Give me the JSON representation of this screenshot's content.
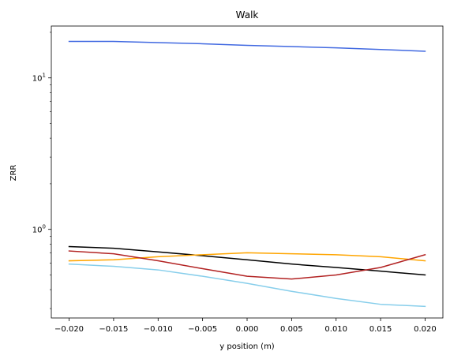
{
  "chart_data": {
    "type": "line",
    "title": "Walk",
    "xlabel": "y position (m)",
    "ylabel": "ZRR",
    "yscale": "log",
    "xlim": [
      -0.022,
      0.022
    ],
    "ylim": [
      0.26,
      22
    ],
    "grid": false,
    "legend": "none",
    "x_ticks": [
      -0.02,
      -0.015,
      -0.01,
      -0.005,
      0.0,
      0.005,
      0.01,
      0.015,
      0.02
    ],
    "x_tick_labels": [
      "−0.020",
      "−0.015",
      "−0.010",
      "−0.005",
      "0.000",
      "0.005",
      "0.010",
      "0.015",
      "0.020"
    ],
    "y_major_ticks": [
      1,
      10
    ],
    "y_tick_labels": [
      {
        "base": "10",
        "exp": "0"
      },
      {
        "base": "10",
        "exp": "1"
      }
    ],
    "x": [
      -0.02,
      -0.015,
      -0.01,
      -0.005,
      0.0,
      0.005,
      0.01,
      0.015,
      0.02
    ],
    "series": [
      {
        "color": "#4169e1",
        "values": [
          17.4,
          17.4,
          17.1,
          16.8,
          16.4,
          16.1,
          15.8,
          15.4,
          15.0
        ]
      },
      {
        "color": "#000000",
        "values": [
          0.77,
          0.75,
          0.71,
          0.67,
          0.63,
          0.59,
          0.56,
          0.53,
          0.5
        ]
      },
      {
        "color": "#ffa500",
        "values": [
          0.62,
          0.63,
          0.66,
          0.68,
          0.7,
          0.69,
          0.68,
          0.66,
          0.62
        ]
      },
      {
        "color": "#b22222",
        "values": [
          0.72,
          0.69,
          0.62,
          0.55,
          0.49,
          0.47,
          0.5,
          0.56,
          0.68
        ]
      },
      {
        "color": "#87ceeb",
        "values": [
          0.59,
          0.57,
          0.54,
          0.49,
          0.44,
          0.39,
          0.35,
          0.32,
          0.31
        ]
      }
    ]
  }
}
